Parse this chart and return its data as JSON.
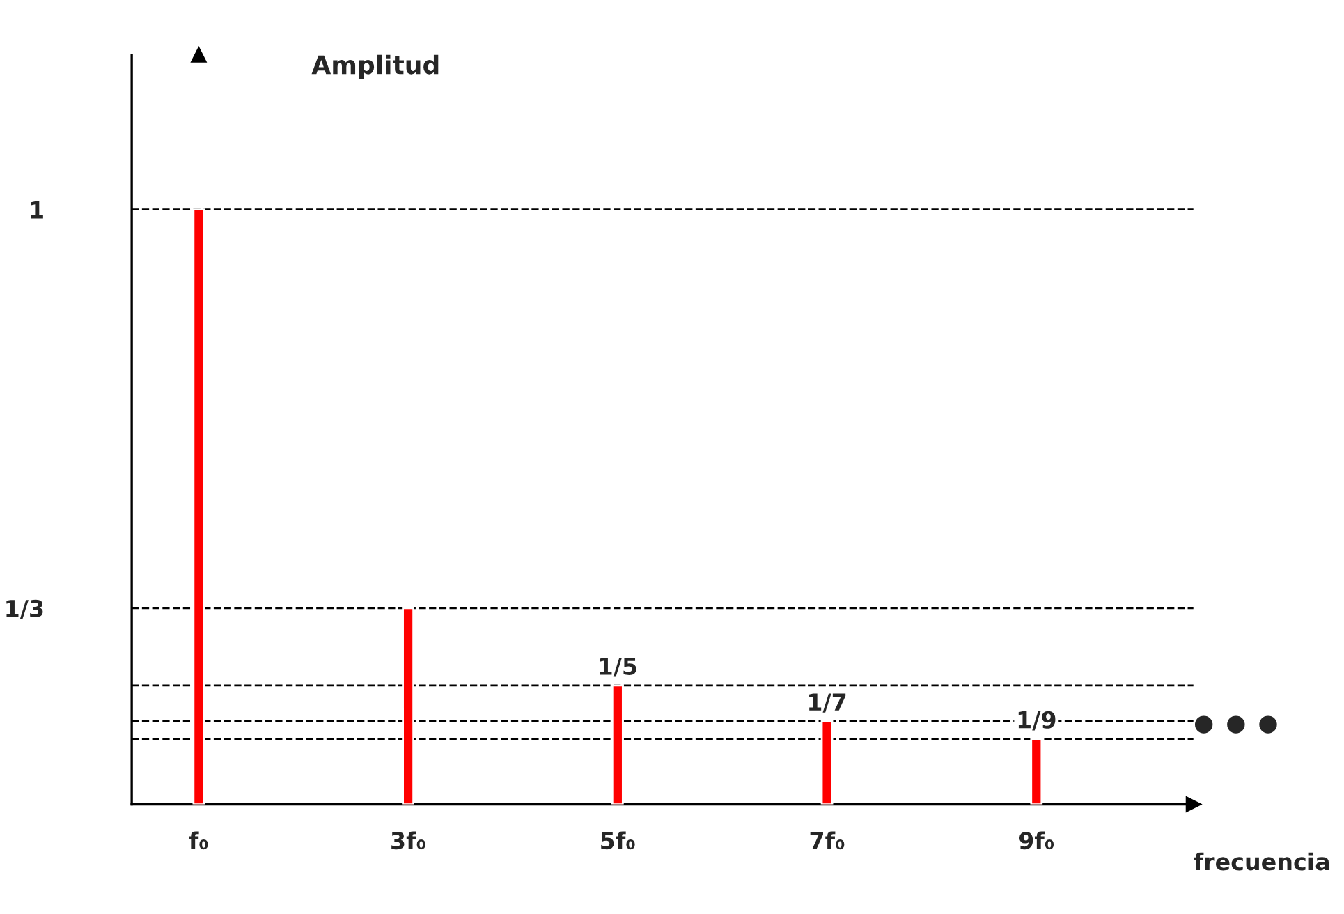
{
  "chart_data": {
    "type": "bar",
    "ylabel": "Amplitud",
    "xlabel": "frecuencia",
    "categories": [
      "f₀",
      "3f₀",
      "5f₀",
      "7f₀",
      "9f₀"
    ],
    "values": [
      1,
      0.33,
      0.2,
      0.14,
      0.11
    ],
    "color": "#ff0000",
    "value_labels": [
      null,
      null,
      "1/5",
      "1/7",
      "1/9"
    ],
    "ylim": [
      0,
      1.26
    ],
    "yticks": [
      {
        "value": 1,
        "label": "1"
      },
      {
        "value": 0.33,
        "label": "1/3"
      }
    ],
    "ref_lines": [
      {
        "axis": "y",
        "value": 1,
        "color": "#000000",
        "line_style": "dashed"
      },
      {
        "axis": "y",
        "value": 0.33,
        "color": "#000000",
        "line_style": "dashed"
      },
      {
        "axis": "y",
        "value": 0.2,
        "color": "#000000",
        "line_style": "dashed"
      },
      {
        "axis": "y",
        "value": 0.14,
        "color": "#000000",
        "line_style": "dashed"
      },
      {
        "axis": "y",
        "value": 0.11,
        "color": "#000000",
        "line_style": "dashed"
      }
    ],
    "annotations": [
      "•••"
    ],
    "grid": false,
    "legend": false
  }
}
